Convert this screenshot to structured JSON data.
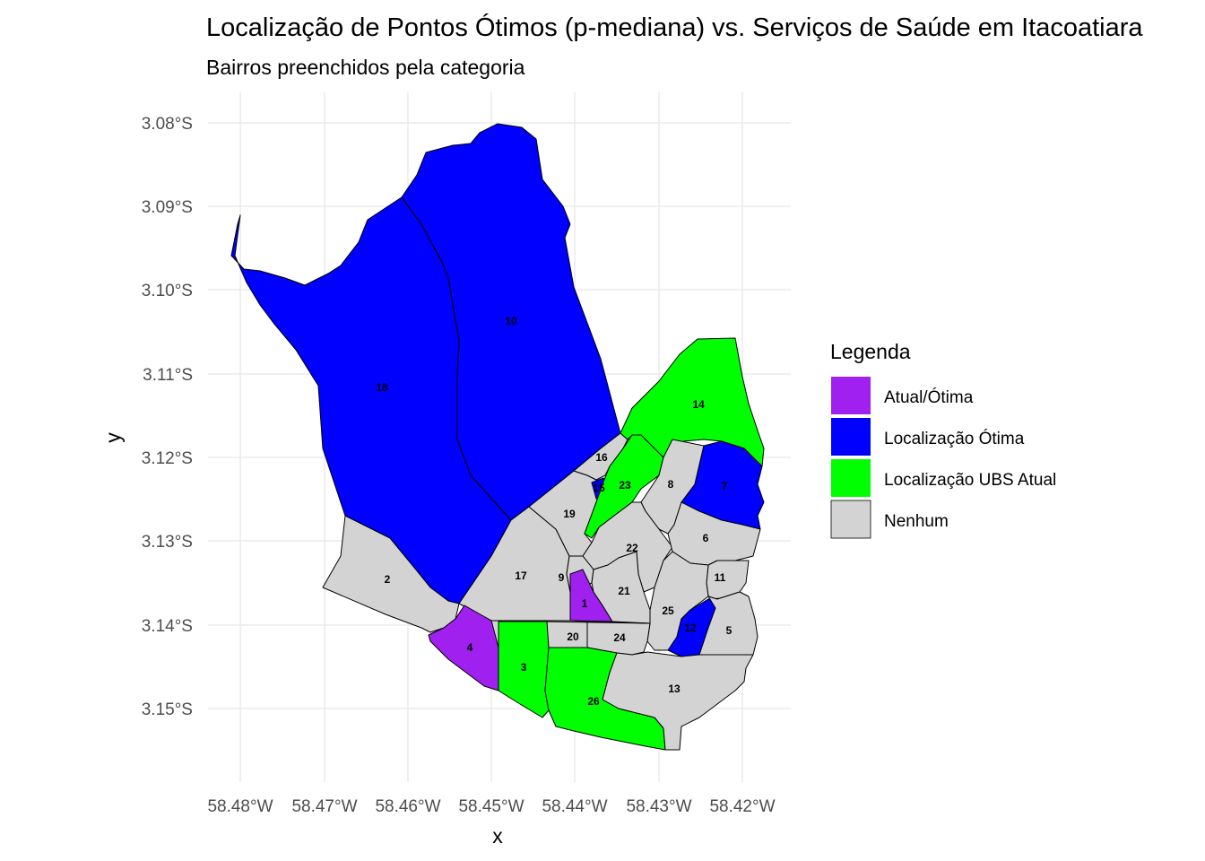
{
  "title": "Localização de Pontos Ótimos (p-mediana) vs. Serviços de Saúde em Itacoatiara",
  "subtitle": "Bairros preenchidos pela categoria",
  "axes": {
    "xlabel": "x",
    "ylabel": "y",
    "x_ticks": [
      "58.48°W",
      "58.47°W",
      "58.46°W",
      "58.45°W",
      "58.44°W",
      "58.43°W",
      "58.42°W"
    ],
    "y_ticks": [
      "3.08°S",
      "3.09°S",
      "3.10°S",
      "3.11°S",
      "3.12°S",
      "3.13°S",
      "3.14°S",
      "3.15°S"
    ]
  },
  "legend": {
    "title": "Legenda",
    "items": [
      {
        "label": "Atual/Ótima",
        "color": "#a020f0"
      },
      {
        "label": "Localização Ótima",
        "color": "#0000ff"
      },
      {
        "label": "Localização UBS Atual",
        "color": "#00ff00"
      },
      {
        "label": "Nenhum",
        "color": "#d3d3d3"
      }
    ]
  },
  "colors": {
    "atual_otima": "#a020f0",
    "otima": "#0000ff",
    "ubs_atual": "#00ff00",
    "nenhum": "#d3d3d3"
  },
  "neighborhoods": [
    {
      "id": "1",
      "category": "Atual/Ótima"
    },
    {
      "id": "2",
      "category": "Nenhum"
    },
    {
      "id": "3",
      "category": "Localização UBS Atual"
    },
    {
      "id": "4",
      "category": "Atual/Ótima"
    },
    {
      "id": "5",
      "category": "Nenhum"
    },
    {
      "id": "6",
      "category": "Nenhum"
    },
    {
      "id": "7",
      "category": "Localização Ótima"
    },
    {
      "id": "8",
      "category": "Nenhum"
    },
    {
      "id": "9",
      "category": "Nenhum"
    },
    {
      "id": "10",
      "category": "Localização Ótima"
    },
    {
      "id": "11",
      "category": "Nenhum"
    },
    {
      "id": "12",
      "category": "Localização Ótima"
    },
    {
      "id": "13",
      "category": "Nenhum"
    },
    {
      "id": "14",
      "category": "Localização UBS Atual"
    },
    {
      "id": "15",
      "category": "Localização Ótima"
    },
    {
      "id": "16",
      "category": "Nenhum"
    },
    {
      "id": "17",
      "category": "Nenhum"
    },
    {
      "id": "18",
      "category": "Localização Ótima"
    },
    {
      "id": "19",
      "category": "Nenhum"
    },
    {
      "id": "20",
      "category": "Nenhum"
    },
    {
      "id": "21",
      "category": "Nenhum"
    },
    {
      "id": "22",
      "category": "Nenhum"
    },
    {
      "id": "23",
      "category": "Localização UBS Atual"
    },
    {
      "id": "24",
      "category": "Nenhum"
    },
    {
      "id": "25",
      "category": "Nenhum"
    },
    {
      "id": "26",
      "category": "Localização UBS Atual"
    }
  ]
}
